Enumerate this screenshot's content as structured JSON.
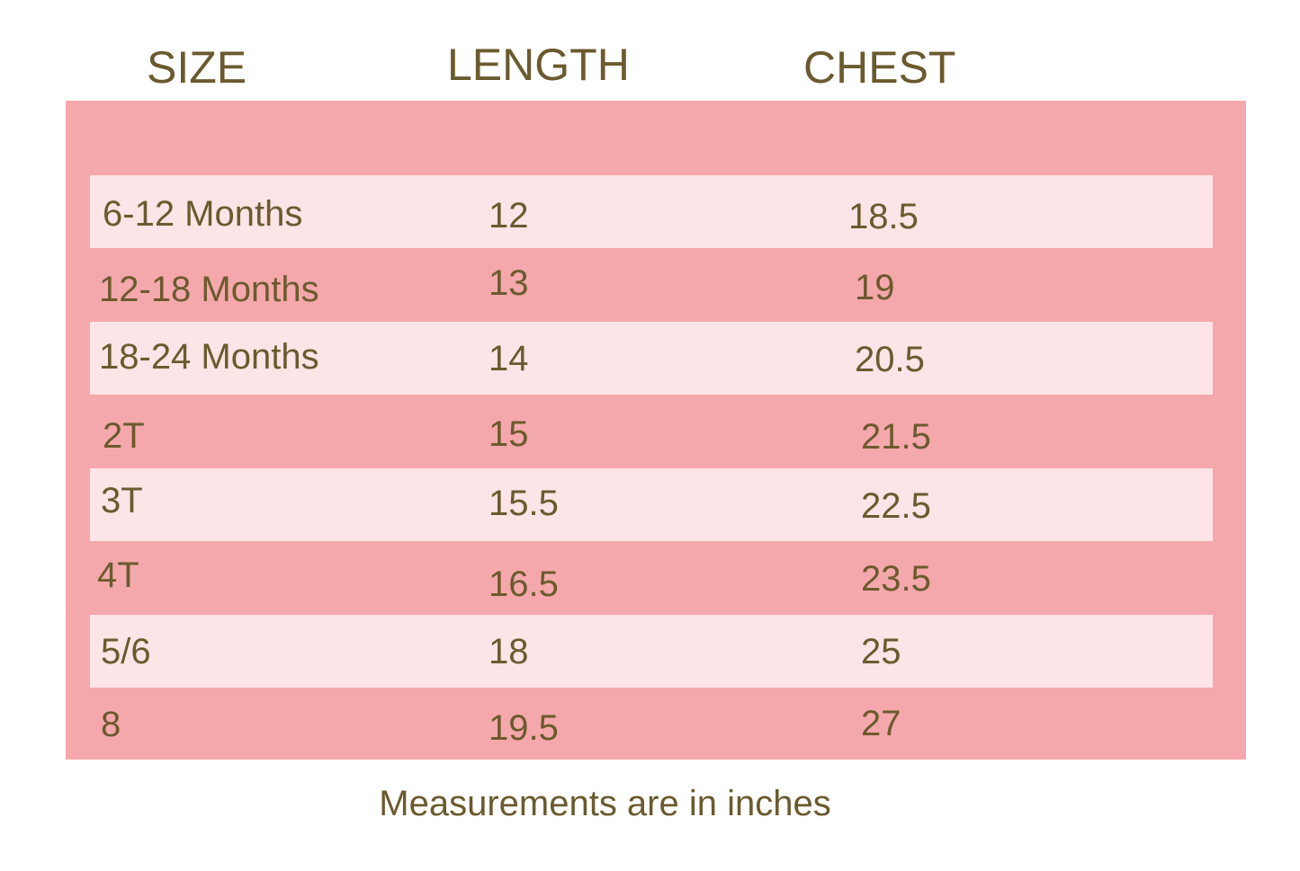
{
  "header": {
    "columns": [
      "SIZE",
      "LENGTH",
      "CHEST"
    ]
  },
  "table": {
    "rows": [
      [
        "6-12 Months",
        "12",
        "18.5"
      ],
      [
        "12-18 Months",
        "13",
        "19"
      ],
      [
        "18-24 Months",
        "14",
        "20.5"
      ],
      [
        "2T",
        "15",
        "21.5"
      ],
      [
        "3T",
        "15.5",
        "22.5"
      ],
      [
        "4T",
        "16.5",
        "23.5"
      ],
      [
        "5/6",
        "18",
        "25"
      ],
      [
        "8",
        "19.5",
        "27"
      ]
    ]
  },
  "footnote": "Measurements are in inches"
}
